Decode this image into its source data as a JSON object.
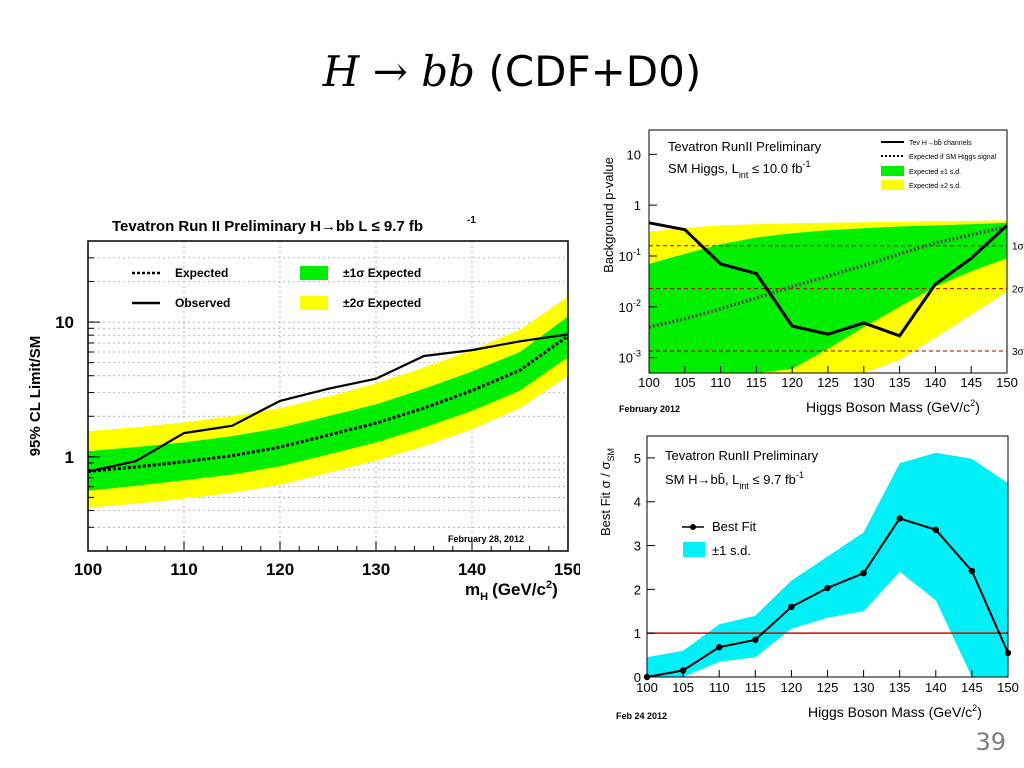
{
  "slide": {
    "title_math": "H → bb",
    "title_text": "(CDF+D0)",
    "page_number": "39"
  },
  "colors": {
    "band1": "#00ee00",
    "band2": "#ffff00",
    "cyan": "#00f0f8",
    "red": "#e00000",
    "sigline": "#aa0000"
  },
  "chart_data": [
    {
      "type": "line",
      "id": "limit",
      "title": "Tevatron Run II Preliminary    H→bb    L ≤ 9.7 fb",
      "title_sup": "-1",
      "xlabel": "m",
      "xlabel_sub": "H",
      "xlabel_unit": "(GeV/c",
      "xlabel_unit_sup": "2",
      "xlabel_end": ")",
      "ylabel": "95% CL Limit/SM",
      "yscale": "log",
      "xlim": [
        100,
        150
      ],
      "ylim": [
        0.2,
        40
      ],
      "xticks": [
        100,
        110,
        120,
        130,
        140,
        150
      ],
      "yticks": [
        {
          "v": 1,
          "label": "1"
        },
        {
          "v": 10,
          "label": "10"
        }
      ],
      "date": "February 28, 2012",
      "legend": {
        "expected": "Expected",
        "observed": "Observed",
        "one_sigma": "±1σ Expected",
        "two_sigma": "±2σ Expected"
      },
      "x": [
        100,
        105,
        110,
        115,
        120,
        125,
        130,
        135,
        140,
        145,
        150
      ],
      "series": [
        {
          "name": "Observed",
          "values": [
            0.78,
            0.93,
            1.5,
            1.7,
            2.6,
            3.2,
            3.8,
            5.6,
            6.2,
            7.2,
            8.1
          ]
        },
        {
          "name": "Expected",
          "values": [
            0.78,
            0.84,
            0.92,
            1.02,
            1.18,
            1.45,
            1.78,
            2.3,
            3.1,
            4.4,
            7.9
          ]
        }
      ],
      "band_1sigma": {
        "low": [
          0.56,
          0.61,
          0.67,
          0.74,
          0.85,
          1.04,
          1.28,
          1.65,
          2.2,
          3.1,
          5.5
        ],
        "high": [
          1.1,
          1.18,
          1.28,
          1.42,
          1.64,
          2.0,
          2.45,
          3.2,
          4.3,
          6.0,
          11.0
        ]
      },
      "band_2sigma": {
        "low": [
          0.42,
          0.45,
          0.49,
          0.54,
          0.62,
          0.76,
          0.94,
          1.2,
          1.6,
          2.3,
          4.0
        ],
        "high": [
          1.55,
          1.66,
          1.8,
          2.0,
          2.3,
          2.8,
          3.5,
          4.6,
          6.2,
          8.8,
          15.5
        ]
      }
    },
    {
      "type": "line",
      "id": "pvalue",
      "title": "Tevatron RunII Preliminary",
      "subtitle": "SM Higgs, L",
      "subtitle_sub": "int",
      "subtitle_end": " ≤ 10.0 fb",
      "subtitle_sup": "-1",
      "xlabel": "Higgs Boson Mass (GeV/c",
      "xlabel_sup": "2",
      "xlabel_end": ")",
      "ylabel": "Background p-value",
      "yscale": "log",
      "xlim": [
        100,
        150
      ],
      "ylim": [
        0.0005,
        30
      ],
      "xticks": [
        100,
        105,
        110,
        115,
        120,
        125,
        130,
        135,
        140,
        145,
        150
      ],
      "yticks": [
        {
          "v": 10,
          "base": "10",
          "exp": ""
        },
        {
          "v": 1,
          "base": "1",
          "exp": ""
        },
        {
          "v": 0.1,
          "base": "10",
          "exp": "-1"
        },
        {
          "v": 0.01,
          "base": "10",
          "exp": "-2"
        },
        {
          "v": 0.001,
          "base": "10",
          "exp": "-3"
        }
      ],
      "sigma_lines": [
        {
          "v": 0.159,
          "label": "1σ"
        },
        {
          "v": 0.0228,
          "label": "2σ"
        },
        {
          "v": 0.00135,
          "label": "3σ"
        }
      ],
      "date": "February 2012",
      "legend": {
        "observed": "Tev H→bb̄ channels",
        "expected": "Expected if SM Higgs signal",
        "one_sd": "Expected ±1 s.d.",
        "two_sd": "Expected ±2 s.d."
      },
      "x": [
        100,
        105,
        110,
        115,
        120,
        125,
        130,
        135,
        140,
        145,
        150
      ],
      "series": [
        {
          "name": "Observed",
          "values": [
            0.45,
            0.33,
            0.07,
            0.045,
            0.0042,
            0.0029,
            0.0048,
            0.0027,
            0.028,
            0.09,
            0.4
          ]
        },
        {
          "name": "Expected",
          "values": [
            0.004,
            0.0058,
            0.0092,
            0.015,
            0.025,
            0.04,
            0.065,
            0.11,
            0.18,
            0.26,
            0.38
          ]
        }
      ],
      "band_1sigma": {
        "low": [
          0.0005,
          0.0005,
          0.0005,
          0.0005,
          0.0006,
          0.0015,
          0.004,
          0.01,
          0.025,
          0.05,
          0.09
        ],
        "high": [
          0.07,
          0.11,
          0.17,
          0.23,
          0.28,
          0.32,
          0.35,
          0.38,
          0.4,
          0.42,
          0.45
        ]
      },
      "band_2sigma": {
        "low": [
          0.0005,
          0.0005,
          0.0005,
          0.0005,
          0.0005,
          0.0005,
          0.0005,
          0.0009,
          0.0025,
          0.007,
          0.02
        ],
        "high": [
          0.3,
          0.36,
          0.4,
          0.42,
          0.44,
          0.45,
          0.46,
          0.47,
          0.48,
          0.49,
          0.5
        ]
      }
    },
    {
      "type": "line",
      "id": "bestfit",
      "title": "Tevatron RunII Preliminary",
      "subtitle": "SM H→bb̄, L",
      "subtitle_sub": "int",
      "subtitle_end": " ≤ 9.7 fb",
      "subtitle_sup": "-1",
      "xlabel": "Higgs Boson Mass (GeV/c",
      "xlabel_sup": "2",
      "xlabel_end": ")",
      "ylabel": "Best Fit σ / σ",
      "ylabel_sub": "SM",
      "xlim": [
        100,
        150
      ],
      "ylim": [
        0,
        5.5
      ],
      "xticks": [
        100,
        105,
        110,
        115,
        120,
        125,
        130,
        135,
        140,
        145,
        150
      ],
      "yticks": [
        0,
        1,
        2,
        3,
        4,
        5
      ],
      "reference_line": 1,
      "date": "Feb 24 2012",
      "legend": {
        "best_fit": "Best Fit",
        "one_sd": "±1 s.d."
      },
      "x": [
        100,
        105,
        110,
        115,
        120,
        125,
        130,
        135,
        140,
        145,
        150
      ],
      "series": [
        {
          "name": "Best Fit",
          "values": [
            0.0,
            0.15,
            0.68,
            0.85,
            1.6,
            2.03,
            2.37,
            3.62,
            3.36,
            2.42,
            0.55
          ]
        }
      ],
      "band_1sigma": {
        "low": [
          0.0,
          0.0,
          0.35,
          0.45,
          1.1,
          1.35,
          1.5,
          2.4,
          1.75,
          0.0,
          0.0
        ],
        "high": [
          0.45,
          0.6,
          1.2,
          1.4,
          2.2,
          2.75,
          3.3,
          4.88,
          5.12,
          4.98,
          4.42
        ]
      }
    }
  ]
}
